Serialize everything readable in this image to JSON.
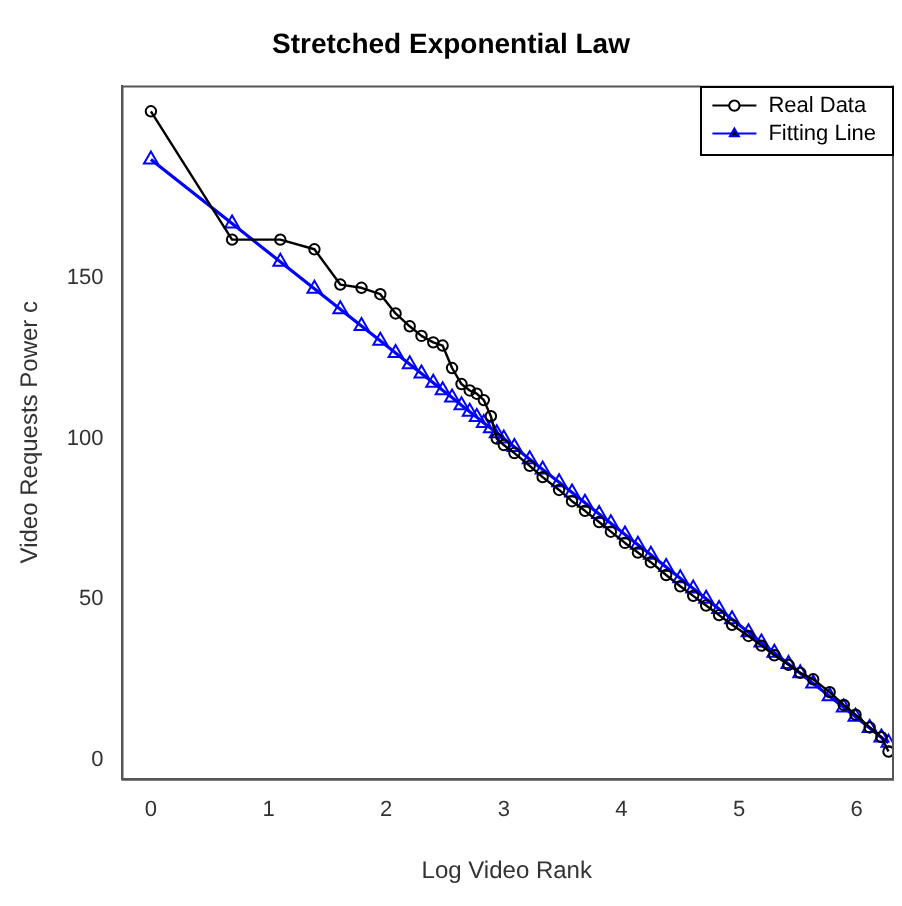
{
  "chart_data": {
    "type": "line",
    "title": "Stretched Exponential Law",
    "xlabel": "Log Video Rank",
    "ylabel": "Video Requests Power c",
    "x": [
      0,
      0.69,
      1.1,
      1.39,
      1.61,
      1.79,
      1.95,
      2.08,
      2.2,
      2.3,
      2.4,
      2.48,
      2.56,
      2.64,
      2.71,
      2.77,
      2.83,
      2.89,
      2.94,
      3.0,
      3.09,
      3.22,
      3.33,
      3.47,
      3.58,
      3.69,
      3.81,
      3.91,
      4.03,
      4.14,
      4.25,
      4.38,
      4.5,
      4.61,
      4.72,
      4.83,
      4.94,
      5.08,
      5.19,
      5.3,
      5.42,
      5.52,
      5.63,
      5.77,
      5.89,
      5.99,
      6.11,
      6.21,
      6.27
    ],
    "series": [
      {
        "name": "Real Data",
        "color": "#000000",
        "marker": "circle",
        "values": [
          202,
          162,
          162,
          159,
          148,
          147,
          145,
          139,
          135,
          132,
          130,
          129,
          122,
          117,
          115,
          114,
          112,
          107,
          100,
          98,
          95.5,
          91.5,
          88,
          84,
          80.5,
          77.5,
          74,
          71,
          67.5,
          64.5,
          61.5,
          57.5,
          54,
          51,
          48,
          45,
          42,
          38.5,
          35.5,
          32.5,
          29.5,
          27,
          25,
          21,
          17,
          14,
          10,
          7,
          2.5
        ]
      },
      {
        "name": "Fitting Line",
        "color": "#0000ff",
        "marker": "triangle",
        "values": [
          187,
          167.0,
          155.1,
          146.7,
          140.3,
          135.1,
          130.5,
          126.7,
          123.2,
          120.3,
          117.4,
          115.1,
          112.8,
          110.4,
          108.4,
          106.7,
          104.9,
          103.2,
          101.7,
          100.0,
          97.4,
          93.6,
          90.4,
          86.4,
          83.2,
          80.0,
          76.5,
          73.6,
          70.1,
          66.9,
          63.8,
          60.0,
          56.5,
          53.3,
          50.1,
          46.9,
          43.7,
          39.7,
          36.5,
          33.3,
          29.8,
          26.9,
          23.7,
          19.7,
          16.2,
          13.3,
          9.8,
          6.9,
          5.2
        ]
      }
    ],
    "xlim": [
      -0.25,
      6.3
    ],
    "xticks": [
      0,
      1,
      2,
      3,
      4,
      5,
      6
    ],
    "ylim": [
      -6,
      210
    ],
    "yticks": [
      0,
      50,
      100,
      150
    ],
    "grid": false,
    "legend": "top right",
    "line_style": "solid"
  }
}
